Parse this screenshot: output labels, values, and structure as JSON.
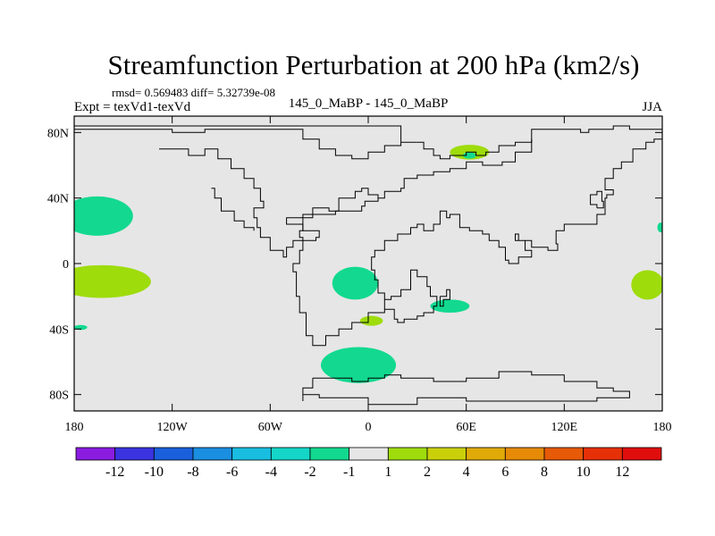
{
  "chart_data": {
    "type": "heatmap",
    "title": "Streamfunction Perturbation at 200 hPa (km2/s)",
    "stats_line": "rmsd= 0.569483 diff= 5.32739e-08",
    "left_label": "Expt = texVd1-texVd",
    "center_label": "145_0_MaBP - 145_0_MaBP",
    "right_label": "JJA",
    "xlim": [
      -180,
      180
    ],
    "ylim": [
      -90,
      90
    ],
    "x_ticks": [
      -180,
      -120,
      -60,
      0,
      60,
      120,
      180
    ],
    "x_tick_labels": [
      "180",
      "120W",
      "60W",
      "0",
      "60E",
      "120E",
      "180"
    ],
    "y_ticks": [
      80,
      40,
      0,
      -40,
      -80
    ],
    "y_tick_labels": [
      "80N",
      "40N",
      "0",
      "40S",
      "80S"
    ],
    "background_color": "#e6e6e6",
    "colorbar": {
      "levels": [
        "-12",
        "-10",
        "-8",
        "-6",
        "-4",
        "-2",
        "-1",
        "1",
        "2",
        "4",
        "6",
        "8",
        "10",
        "12"
      ],
      "colors": [
        "#8a1ce0",
        "#3a33e0",
        "#1a5fdb",
        "#1a8ee0",
        "#19bde0",
        "#14d6c8",
        "#12d98f",
        "#e6e6e6",
        "#9edc0c",
        "#c9d00a",
        "#e0aa08",
        "#e68a08",
        "#e65a08",
        "#e63008",
        "#e00d0d"
      ]
    },
    "anomalies": [
      {
        "name": "neg-north-pacific",
        "category": "-2 to -1",
        "color": "#12d98f",
        "lon": -166,
        "lat": 29,
        "rlon": 22,
        "rlat": 12
      },
      {
        "name": "pos-equatorial-pacific",
        "category": "1 to 2",
        "color": "#9edc0c",
        "lon": -163,
        "lat": -11,
        "rlon": 30,
        "rlat": 10
      },
      {
        "name": "neg-south-pacific-small",
        "category": "-2 to -1",
        "color": "#12d98f",
        "lon": -176,
        "lat": -39,
        "rlon": 4,
        "rlat": 1.5
      },
      {
        "name": "neg-south-atlantic",
        "category": "-2 to -1",
        "color": "#12d98f",
        "lon": -8,
        "lat": -12,
        "rlon": 14,
        "rlat": 10
      },
      {
        "name": "pos-south-atlantic",
        "category": "1 to 2",
        "color": "#9edc0c",
        "lon": 2,
        "lat": -35,
        "rlon": 7,
        "rlat": 3
      },
      {
        "name": "neg-southern-ocean",
        "category": "-2 to -1",
        "color": "#12d98f",
        "lon": -6,
        "lat": -62,
        "rlon": 23,
        "rlat": 11
      },
      {
        "name": "neg-indian-ocean",
        "category": "-2 to -1",
        "color": "#12d98f",
        "lon": 50,
        "lat": -26,
        "rlon": 12,
        "rlat": 4
      },
      {
        "name": "pos-arctic-siberia",
        "category": "1 to 2",
        "color": "#9edc0c",
        "lon": 62,
        "lat": 68,
        "rlon": 12,
        "rlat": 4.5
      },
      {
        "name": "neg-arctic-siberia-core",
        "category": "-2 to -1",
        "color": "#12d98f",
        "lon": 62,
        "lat": 66,
        "rlon": 4,
        "rlat": 2
      },
      {
        "name": "pos-east-pacific",
        "category": "1 to 2",
        "color": "#9edc0c",
        "lon": 171,
        "lat": -13,
        "rlon": 10,
        "rlat": 9
      },
      {
        "name": "neg-east-pacific-edge",
        "category": "-2 to -1",
        "color": "#12d98f",
        "lon": 179,
        "lat": 22,
        "rlon": 2,
        "rlat": 3
      }
    ],
    "coastlines": [
      {
        "name": "eurasia-africa",
        "points": [
          [
            -26,
            -50
          ],
          [
            -34,
            -44
          ],
          [
            -38,
            -30
          ],
          [
            -42,
            -20
          ],
          [
            -44,
            -5
          ],
          [
            -46,
            0
          ],
          [
            -42,
            8
          ],
          [
            -40,
            14
          ],
          [
            -32,
            16
          ],
          [
            -30,
            20
          ],
          [
            -40,
            24
          ],
          [
            -50,
            28
          ],
          [
            -40,
            30
          ],
          [
            -20,
            32
          ],
          [
            -4,
            35
          ],
          [
            -2,
            38
          ],
          [
            6,
            40
          ],
          [
            10,
            44
          ],
          [
            20,
            46
          ],
          [
            22,
            52
          ],
          [
            30,
            54
          ],
          [
            40,
            56
          ],
          [
            50,
            58
          ],
          [
            60,
            62
          ],
          [
            70,
            60
          ],
          [
            82,
            62
          ],
          [
            90,
            68
          ],
          [
            100,
            76
          ],
          [
            100,
            82
          ],
          [
            130,
            80
          ],
          [
            135,
            82
          ],
          [
            150,
            84
          ],
          [
            160,
            82
          ],
          [
            180,
            82
          ],
          [
            180,
            76
          ],
          [
            175,
            74
          ],
          [
            170,
            70
          ],
          [
            162,
            62
          ],
          [
            155,
            58
          ],
          [
            150,
            52
          ],
          [
            145,
            45
          ],
          [
            150,
            42
          ],
          [
            146,
            40
          ],
          [
            145,
            30
          ],
          [
            141,
            30
          ],
          [
            140,
            24
          ],
          [
            120,
            20
          ],
          [
            115,
            12
          ],
          [
            116,
            8
          ],
          [
            110,
            10
          ],
          [
            100,
            14
          ],
          [
            92,
            18
          ],
          [
            90,
            14
          ],
          [
            96,
            8
          ],
          [
            100,
            4
          ],
          [
            92,
            0
          ],
          [
            86,
            2
          ],
          [
            84,
            10
          ],
          [
            80,
            14
          ],
          [
            74,
            18
          ],
          [
            70,
            20
          ],
          [
            62,
            22
          ],
          [
            56,
            30
          ],
          [
            50,
            28
          ],
          [
            48,
            32
          ],
          [
            44,
            24
          ],
          [
            40,
            20
          ],
          [
            34,
            24
          ],
          [
            30,
            22
          ],
          [
            26,
            18
          ],
          [
            18,
            14
          ],
          [
            10,
            8
          ],
          [
            4,
            4
          ],
          [
            2,
            -4
          ],
          [
            4,
            -10
          ],
          [
            6,
            -18
          ],
          [
            10,
            -28
          ],
          [
            16,
            -34
          ],
          [
            18,
            -36
          ],
          [
            22,
            -34
          ],
          [
            30,
            -32
          ],
          [
            34,
            -30
          ],
          [
            40,
            -26
          ],
          [
            42,
            -20
          ],
          [
            38,
            -14
          ],
          [
            36,
            -8
          ],
          [
            30,
            -4
          ],
          [
            26,
            -16
          ],
          [
            20,
            -20
          ],
          [
            14,
            -22
          ],
          [
            10,
            -24
          ],
          [
            10,
            -30
          ],
          [
            0,
            -36
          ],
          [
            -10,
            -40
          ],
          [
            -18,
            -44
          ],
          [
            -26,
            -50
          ]
        ]
      },
      {
        "name": "north-america",
        "points": [
          [
            -128,
            70
          ],
          [
            -110,
            66
          ],
          [
            -100,
            70
          ],
          [
            -92,
            64
          ],
          [
            -84,
            58
          ],
          [
            -76,
            52
          ],
          [
            -70,
            46
          ],
          [
            -66,
            38
          ],
          [
            -64,
            34
          ],
          [
            -70,
            28
          ],
          [
            -68,
            22
          ],
          [
            -66,
            16
          ],
          [
            -60,
            8
          ],
          [
            -52,
            4
          ],
          [
            -50,
            10
          ],
          [
            -46,
            14
          ],
          [
            -40,
            16
          ],
          [
            -42,
            20
          ],
          [
            -40,
            28
          ],
          [
            -34,
            34
          ],
          [
            -24,
            32
          ],
          [
            -18,
            40
          ],
          [
            -8,
            44
          ],
          [
            -4,
            46
          ],
          [
            0,
            42
          ],
          [
            6,
            40
          ]
        ]
      },
      {
        "name": "north-america-west",
        "points": [
          [
            -96,
            46
          ],
          [
            -94,
            40
          ],
          [
            -90,
            32
          ],
          [
            -82,
            26
          ],
          [
            -76,
            22
          ],
          [
            -70,
            20
          ]
        ]
      },
      {
        "name": "arctic-top",
        "points": [
          [
            -180,
            82
          ],
          [
            -120,
            80
          ],
          [
            -100,
            82
          ],
          [
            -60,
            82
          ],
          [
            -40,
            76
          ],
          [
            -30,
            70
          ],
          [
            -20,
            66
          ],
          [
            -10,
            64
          ],
          [
            0,
            68
          ],
          [
            10,
            72
          ],
          [
            20,
            74
          ],
          [
            30,
            74
          ],
          [
            20,
            84
          ],
          [
            0,
            84
          ],
          [
            -20,
            84
          ],
          [
            -40,
            84
          ],
          [
            -60,
            84
          ],
          [
            -80,
            84
          ],
          [
            -100,
            84
          ],
          [
            -120,
            84
          ],
          [
            -150,
            84
          ],
          [
            -180,
            84
          ]
        ]
      },
      {
        "name": "antarctica",
        "points": [
          [
            -34,
            -70
          ],
          [
            -10,
            -72
          ],
          [
            0,
            -70
          ],
          [
            10,
            -68
          ],
          [
            20,
            -70
          ],
          [
            40,
            -72
          ],
          [
            60,
            -70
          ],
          [
            80,
            -66
          ],
          [
            100,
            -68
          ],
          [
            120,
            -72
          ],
          [
            130,
            -72
          ],
          [
            140,
            -76
          ],
          [
            150,
            -78
          ],
          [
            160,
            -78
          ],
          [
            160,
            -82
          ],
          [
            140,
            -84
          ],
          [
            100,
            -84
          ],
          [
            60,
            -82
          ],
          [
            30,
            -86
          ],
          [
            0,
            -82
          ],
          [
            -30,
            -80
          ],
          [
            -40,
            -84
          ],
          [
            -40,
            -76
          ],
          [
            -34,
            -70
          ]
        ]
      },
      {
        "name": "greenland-scandinavia",
        "points": [
          [
            30,
            74
          ],
          [
            34,
            70
          ],
          [
            40,
            66
          ],
          [
            44,
            64
          ],
          [
            50,
            66
          ],
          [
            60,
            68
          ],
          [
            66,
            66
          ],
          [
            72,
            68
          ],
          [
            80,
            72
          ],
          [
            90,
            74
          ],
          [
            100,
            76
          ]
        ]
      },
      {
        "name": "japan",
        "points": [
          [
            140,
            34
          ],
          [
            144,
            38
          ],
          [
            143,
            44
          ],
          [
            140,
            42
          ],
          [
            136,
            36
          ],
          [
            140,
            34
          ]
        ]
      },
      {
        "name": "madagascar",
        "points": [
          [
            44,
            -20
          ],
          [
            48,
            -16
          ],
          [
            50,
            -22
          ],
          [
            46,
            -26
          ],
          [
            44,
            -20
          ]
        ]
      }
    ]
  }
}
